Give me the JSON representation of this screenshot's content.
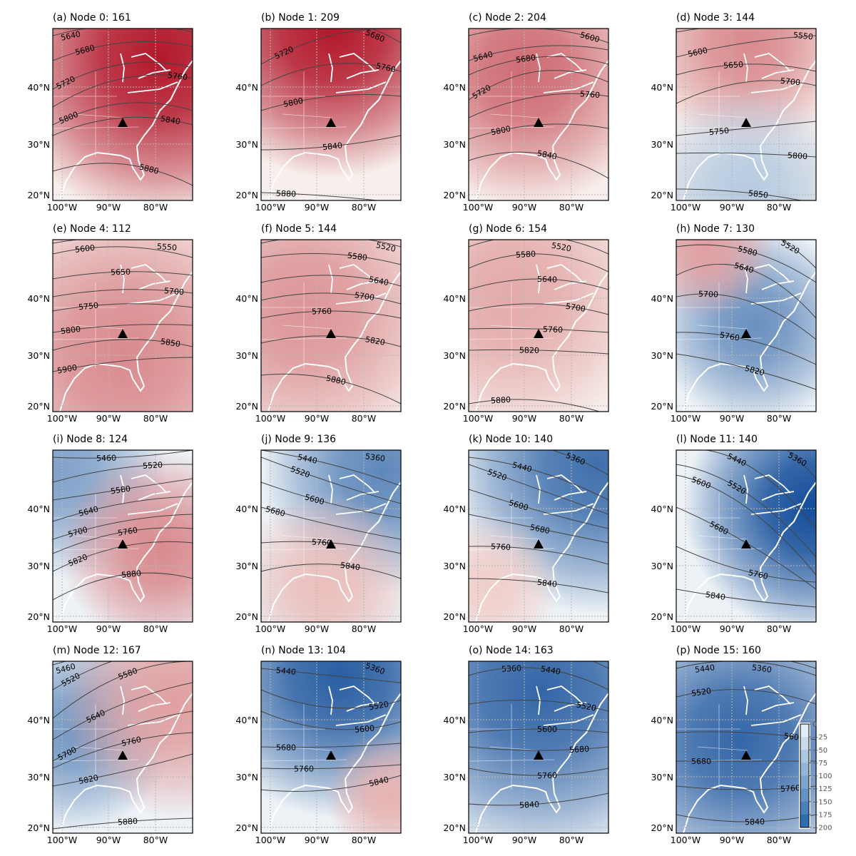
{
  "figure": {
    "lat_ticks": [
      "40°N",
      "30°N",
      "20°N"
    ],
    "lon_ticks": [
      "100°W",
      "90°W",
      "80°W"
    ],
    "marker_icon": "black-triangle",
    "colors": {
      "positive": "#b2182b",
      "negative": "#08519c",
      "contour": "#333333",
      "coastline": "#ffffff"
    },
    "panels": [
      {
        "title": "(a) Node 0: 161",
        "anomaly": "positive",
        "contours": [
          "5640",
          "5680",
          "5720",
          "5760",
          "5800",
          "5840",
          "5880"
        ]
      },
      {
        "title": "(b) Node 1: 209",
        "anomaly": "positive",
        "contours": [
          "5680",
          "5720",
          "5760",
          "5800",
          "5840",
          "5880"
        ]
      },
      {
        "title": "(c) Node 2: 204",
        "anomaly": "positive",
        "contours": [
          "5600",
          "5640",
          "5680",
          "5720",
          "5760",
          "5800",
          "5840"
        ]
      },
      {
        "title": "(d) Node 3: 144",
        "anomaly": "positive",
        "contours": [
          "5550",
          "5600",
          "5650",
          "5700",
          "5750",
          "5800",
          "5850"
        ]
      },
      {
        "title": "(e) Node 4: 112",
        "anomaly": "positive",
        "contours": [
          "5550",
          "5600",
          "5650",
          "5700",
          "5750",
          "5800",
          "5850",
          "5900"
        ]
      },
      {
        "title": "(f) Node 5: 144",
        "anomaly": "positive",
        "contours": [
          "5520",
          "5580",
          "5640",
          "5700",
          "5760",
          "5820",
          "5880"
        ]
      },
      {
        "title": "(g) Node 6: 154",
        "anomaly": "positive",
        "contours": [
          "5520",
          "5580",
          "5640",
          "5700",
          "5760",
          "5820",
          "5880"
        ]
      },
      {
        "title": "(h) Node 7: 130",
        "anomaly": "negative",
        "contours": [
          "5520",
          "5580",
          "5640",
          "5700",
          "5760",
          "5820"
        ]
      },
      {
        "title": "(i) Node 8: 124",
        "anomaly": "positive",
        "contours": [
          "5460",
          "5520",
          "5580",
          "5640",
          "5700",
          "5760",
          "5820",
          "5880"
        ]
      },
      {
        "title": "(j) Node 9: 136",
        "anomaly": "negative",
        "contours": [
          "5360",
          "5440",
          "5520",
          "5600",
          "5680",
          "5760",
          "5840"
        ]
      },
      {
        "title": "(k) Node 10: 140",
        "anomaly": "negative",
        "contours": [
          "5360",
          "5440",
          "5520",
          "5600",
          "5680",
          "5760",
          "5840"
        ]
      },
      {
        "title": "(l) Node 11: 140",
        "anomaly": "negative",
        "contours": [
          "5360",
          "5440",
          "5520",
          "5600",
          "5680",
          "5760",
          "5840"
        ]
      },
      {
        "title": "(m) Node 12: 167",
        "anomaly": "negative",
        "contours": [
          "5460",
          "5520",
          "5580",
          "5640",
          "5700",
          "5760",
          "5820",
          "5880"
        ]
      },
      {
        "title": "(n) Node 13: 104",
        "anomaly": "negative",
        "contours": [
          "5360",
          "5440",
          "5520",
          "5600",
          "5680",
          "5760",
          "5840"
        ]
      },
      {
        "title": "(o) Node 14: 163",
        "anomaly": "negative",
        "contours": [
          "5360",
          "5440",
          "5520",
          "5600",
          "5680",
          "5760",
          "5840"
        ]
      },
      {
        "title": "(p) Node 15: 160",
        "anomaly": "negative",
        "contours": [
          "5360",
          "5440",
          "5520",
          "5600",
          "5680",
          "5760",
          "5840"
        ]
      }
    ],
    "colorbar": {
      "ticks": [
        "0",
        "−25",
        "−50",
        "−75",
        "−100",
        "−125",
        "−150",
        "−175",
        "−200"
      ],
      "range": [
        -200,
        0
      ]
    }
  }
}
